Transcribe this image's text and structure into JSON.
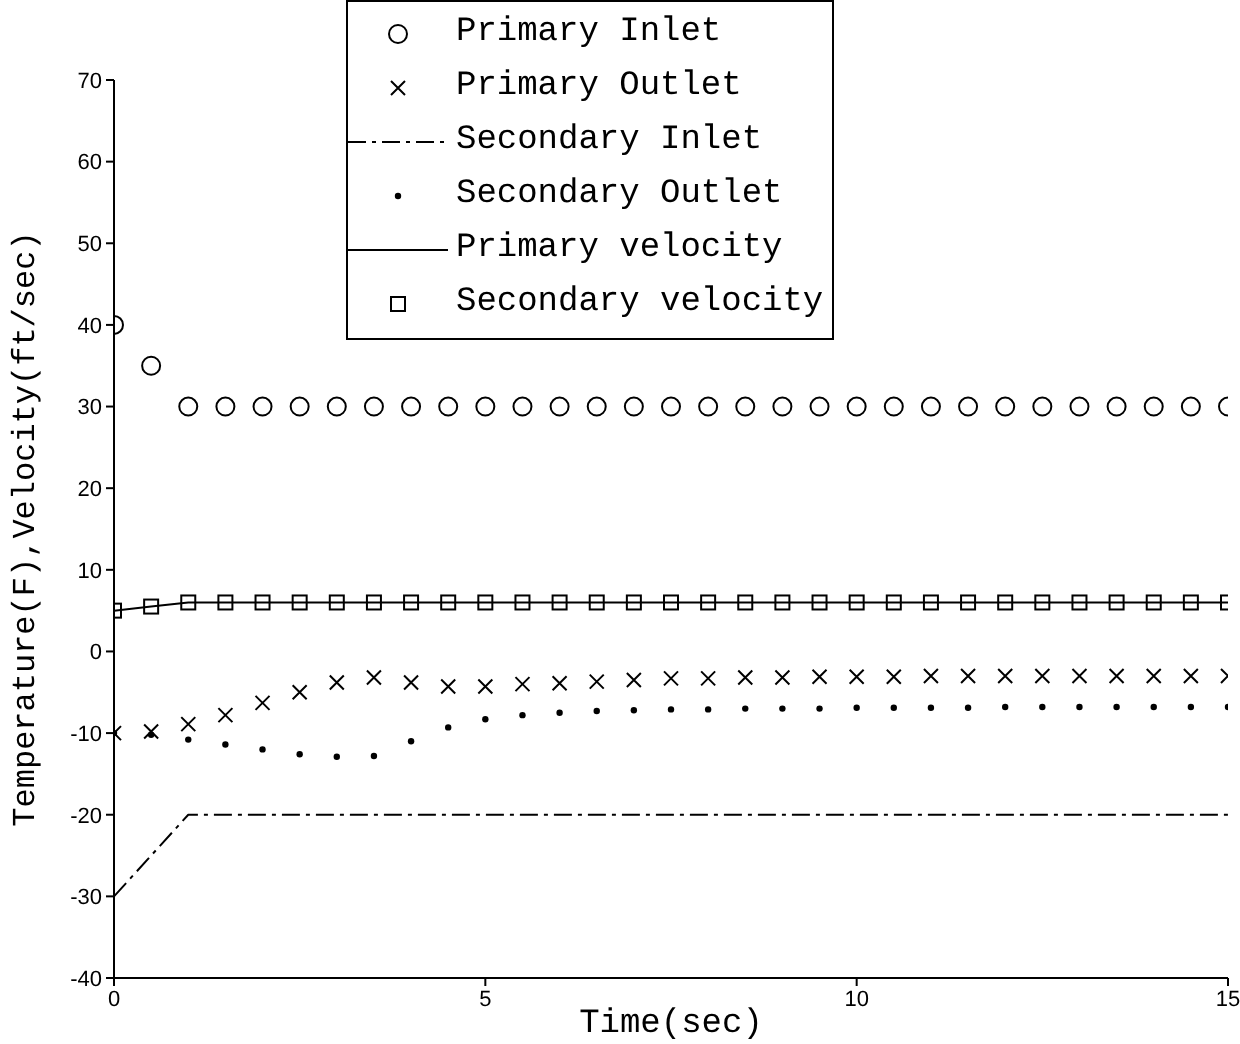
{
  "chart_data": {
    "type": "line",
    "xlabel": "Time(sec)",
    "ylabel": "Temperature(F),Velocity(ft/sec)",
    "x": [
      0,
      0.5,
      1,
      1.5,
      2,
      2.5,
      3,
      3.5,
      4,
      4.5,
      5,
      5.5,
      6,
      6.5,
      7,
      7.5,
      8,
      8.5,
      9,
      9.5,
      10,
      10.5,
      11,
      11.5,
      12,
      12.5,
      13,
      13.5,
      14,
      14.5,
      15
    ],
    "series": [
      {
        "name": "Primary Inlet",
        "type": "scatter",
        "marker": "circle",
        "color": "#000000",
        "values": [
          40,
          35,
          30,
          30,
          30,
          30,
          30,
          30,
          30,
          30,
          30,
          30,
          30,
          30,
          30,
          30,
          30,
          30,
          30,
          30,
          30,
          30,
          30,
          30,
          30,
          30,
          30,
          30,
          30,
          30,
          30
        ]
      },
      {
        "name": "Primary Outlet",
        "type": "scatter",
        "marker": "cross",
        "color": "#000000",
        "values": [
          -10,
          -9.8,
          -8.9,
          -7.8,
          -6.3,
          -5,
          -3.8,
          -3.2,
          -3.8,
          -4.3,
          -4.3,
          -4,
          -3.9,
          -3.7,
          -3.5,
          -3.3,
          -3.3,
          -3.2,
          -3.2,
          -3.1,
          -3.1,
          -3.1,
          -3,
          -3,
          -3,
          -3,
          -3,
          -3,
          -3,
          -3,
          -3
        ]
      },
      {
        "name": "Secondary Inlet",
        "type": "line",
        "line_style": "dashed",
        "marker": "none",
        "color": "#000000",
        "values": [
          -30,
          -25,
          -20,
          -20,
          -20,
          -20,
          -20,
          -20,
          -20,
          -20,
          -20,
          -20,
          -20,
          -20,
          -20,
          -20,
          -20,
          -20,
          -20,
          -20,
          -20,
          -20,
          -20,
          -20,
          -20,
          -20,
          -20,
          -20,
          -20,
          -20,
          -20
        ]
      },
      {
        "name": "Secondary Outlet",
        "type": "scatter",
        "marker": "circle",
        "color": "#000000",
        "values": [
          -10,
          -10.2,
          -10.8,
          -11.4,
          -12,
          -12.6,
          -12.9,
          -12.8,
          -11,
          -9.3,
          -8.3,
          -7.8,
          -7.5,
          -7.3,
          -7.2,
          -7.1,
          -7.1,
          -7,
          -7,
          -7,
          -6.9,
          -6.9,
          -6.9,
          -6.9,
          -6.8,
          -6.8,
          -6.8,
          -6.8,
          -6.8,
          -6.8,
          -6.8
        ]
      },
      {
        "name": "Primary velocity",
        "type": "line",
        "line_style": "solid",
        "marker": "none",
        "color": "#000000",
        "values": [
          5,
          5.5,
          6,
          6,
          6,
          6,
          6,
          6,
          6,
          6,
          6,
          6,
          6,
          6,
          6,
          6,
          6,
          6,
          6,
          6,
          6,
          6,
          6,
          6,
          6,
          6,
          6,
          6,
          6,
          6,
          6
        ]
      },
      {
        "name": "Secondary velocity",
        "type": "scatter",
        "marker": "square",
        "color": "#000000",
        "values": [
          5,
          5.5,
          6,
          6,
          6,
          6,
          6,
          6,
          6,
          6,
          6,
          6,
          6,
          6,
          6,
          6,
          6,
          6,
          6,
          6,
          6,
          6,
          6,
          6,
          6,
          6,
          6,
          6,
          6,
          6,
          6
        ]
      }
    ],
    "xlim": [
      0,
      15
    ],
    "xticks": [
      0,
      5,
      10,
      15
    ],
    "ylim": [
      -40,
      70
    ],
    "yticks": [
      -40,
      -30,
      -20,
      -10,
      0,
      10,
      20,
      30,
      40,
      50,
      60,
      70
    ],
    "grid": false,
    "legend": "top"
  }
}
